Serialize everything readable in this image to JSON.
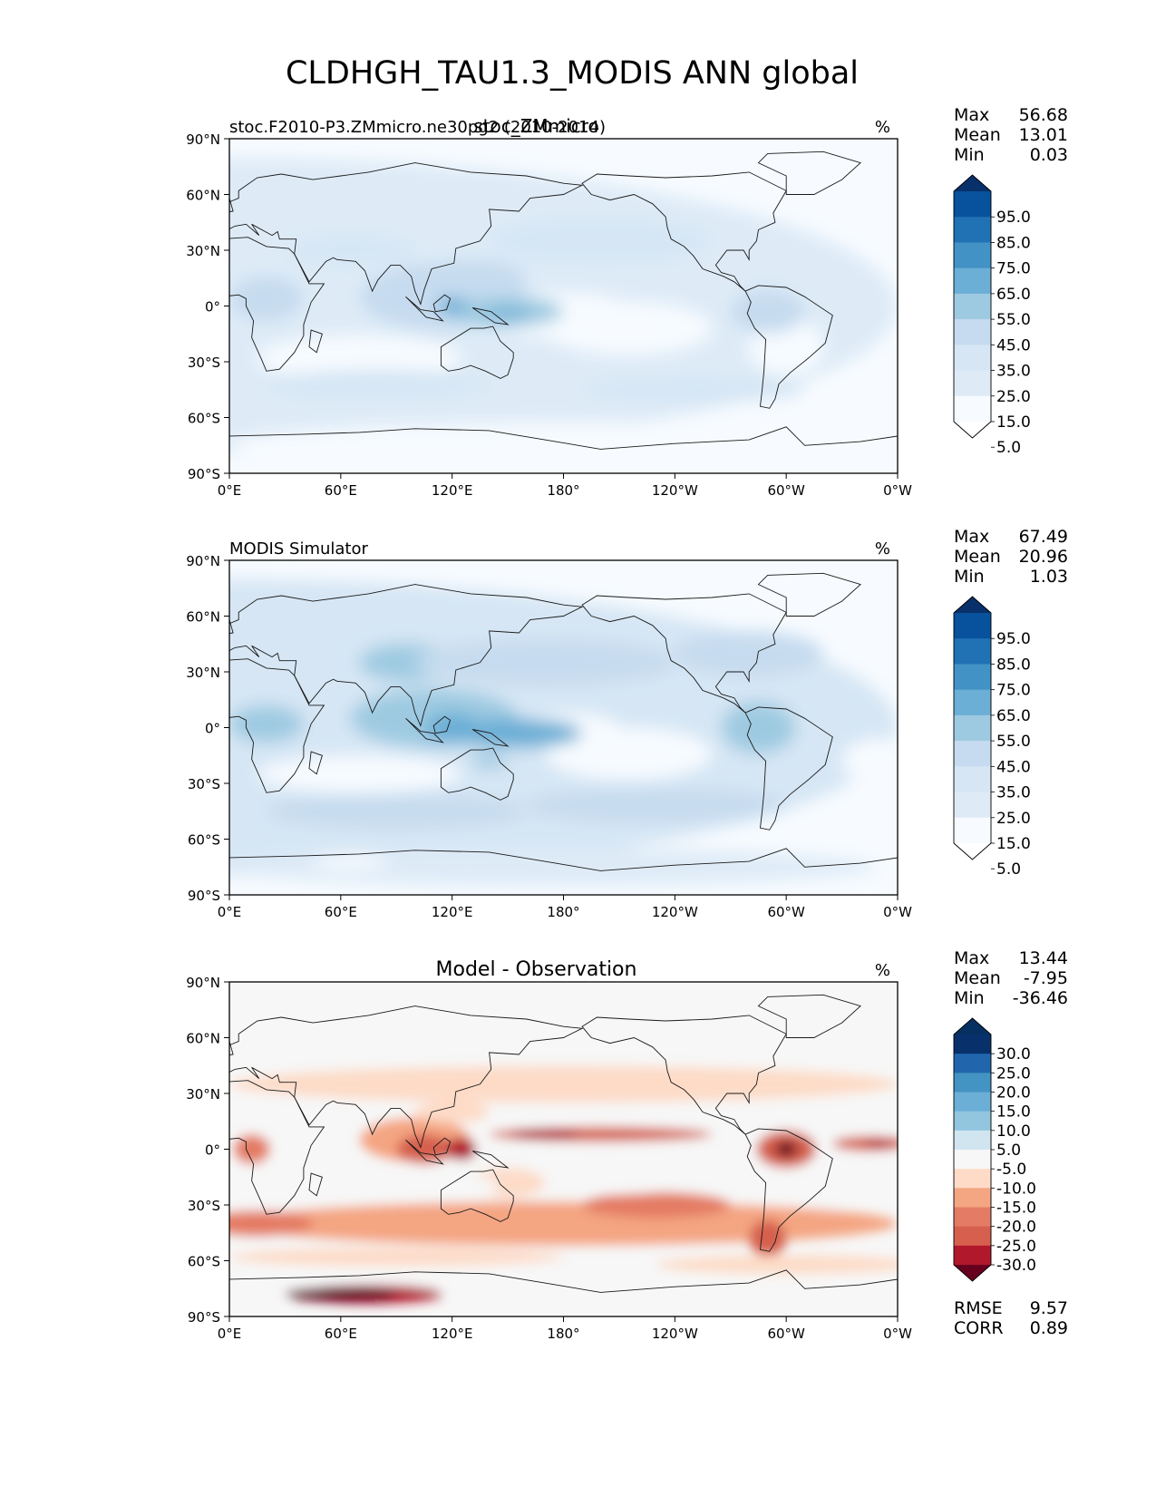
{
  "figure": {
    "title": "CLDHGH_TAU1.3_MODIS ANN global",
    "x_ticks": [
      "0°E",
      "60°E",
      "120°E",
      "180°",
      "120°W",
      "60°W",
      "0°W"
    ],
    "y_ticks": [
      "90°N",
      "60°N",
      "30°N",
      "0°",
      "30°S",
      "60°S",
      "90°S"
    ],
    "stat_labels": {
      "max": "Max",
      "mean": "Mean",
      "min": "Min",
      "rmse": "RMSE",
      "corr": "CORR"
    }
  },
  "chart_data": [
    {
      "type": "heatmap",
      "map_type": "filled contour map on a longitude–latitude grid with coastlines",
      "title_left": "stoc.F2010-P3.ZMmicro.ne30pg2 (2010-2014)",
      "title_center": "stoc_ZMmicro",
      "units": "%",
      "stats": {
        "max": "56.68",
        "mean": "13.01",
        "min": "0.03"
      },
      "colormap": "Blues",
      "colorbar_ticks": [
        "95.0",
        "85.0",
        "75.0",
        "65.0",
        "55.0",
        "45.0",
        "35.0",
        "25.0",
        "15.0",
        "5.0"
      ],
      "colorbar_colors": [
        "#08306b",
        "#08519c",
        "#2171b5",
        "#4292c6",
        "#6baed6",
        "#9ecae1",
        "#c6dbef",
        "#d6e6f4",
        "#deebf7",
        "#f7fbff",
        "#ffffff"
      ],
      "xlim": [
        0,
        360
      ],
      "ylim": [
        -90,
        90
      ]
    },
    {
      "type": "heatmap",
      "map_type": "filled contour map on a longitude–latitude grid with coastlines",
      "title_left": "MODIS Simulator",
      "units": "%",
      "stats": {
        "max": "67.49",
        "mean": "20.96",
        "min": "1.03"
      },
      "colormap": "Blues",
      "colorbar_ticks": [
        "95.0",
        "85.0",
        "75.0",
        "65.0",
        "55.0",
        "45.0",
        "35.0",
        "25.0",
        "15.0",
        "5.0"
      ],
      "colorbar_colors": [
        "#08306b",
        "#08519c",
        "#2171b5",
        "#4292c6",
        "#6baed6",
        "#9ecae1",
        "#c6dbef",
        "#d6e6f4",
        "#deebf7",
        "#f7fbff",
        "#ffffff"
      ],
      "xlim": [
        0,
        360
      ],
      "ylim": [
        -90,
        90
      ]
    },
    {
      "type": "heatmap",
      "map_type": "filled contour map on a longitude–latitude grid with coastlines",
      "title_center": "Model - Observation",
      "units": "%",
      "stats": {
        "max": "13.44",
        "mean": "-7.95",
        "min": "-36.46"
      },
      "rmse": "9.57",
      "corr": "0.89",
      "colormap": "RdBu_r",
      "colorbar_ticks": [
        "30.0",
        "25.0",
        "20.0",
        "15.0",
        "10.0",
        "5.0",
        "-5.0",
        "-10.0",
        "-15.0",
        "-20.0",
        "-25.0",
        "-30.0"
      ],
      "colorbar_colors": [
        "#053061",
        "#08306b",
        "#2166ac",
        "#4393c3",
        "#6baed6",
        "#92c5de",
        "#d1e5f0",
        "#f7f7f7",
        "#fddbc7",
        "#f4a582",
        "#e47b64",
        "#d6604d",
        "#b2182b",
        "#67001f"
      ],
      "xlim": [
        0,
        360
      ],
      "ylim": [
        -90,
        90
      ]
    }
  ]
}
